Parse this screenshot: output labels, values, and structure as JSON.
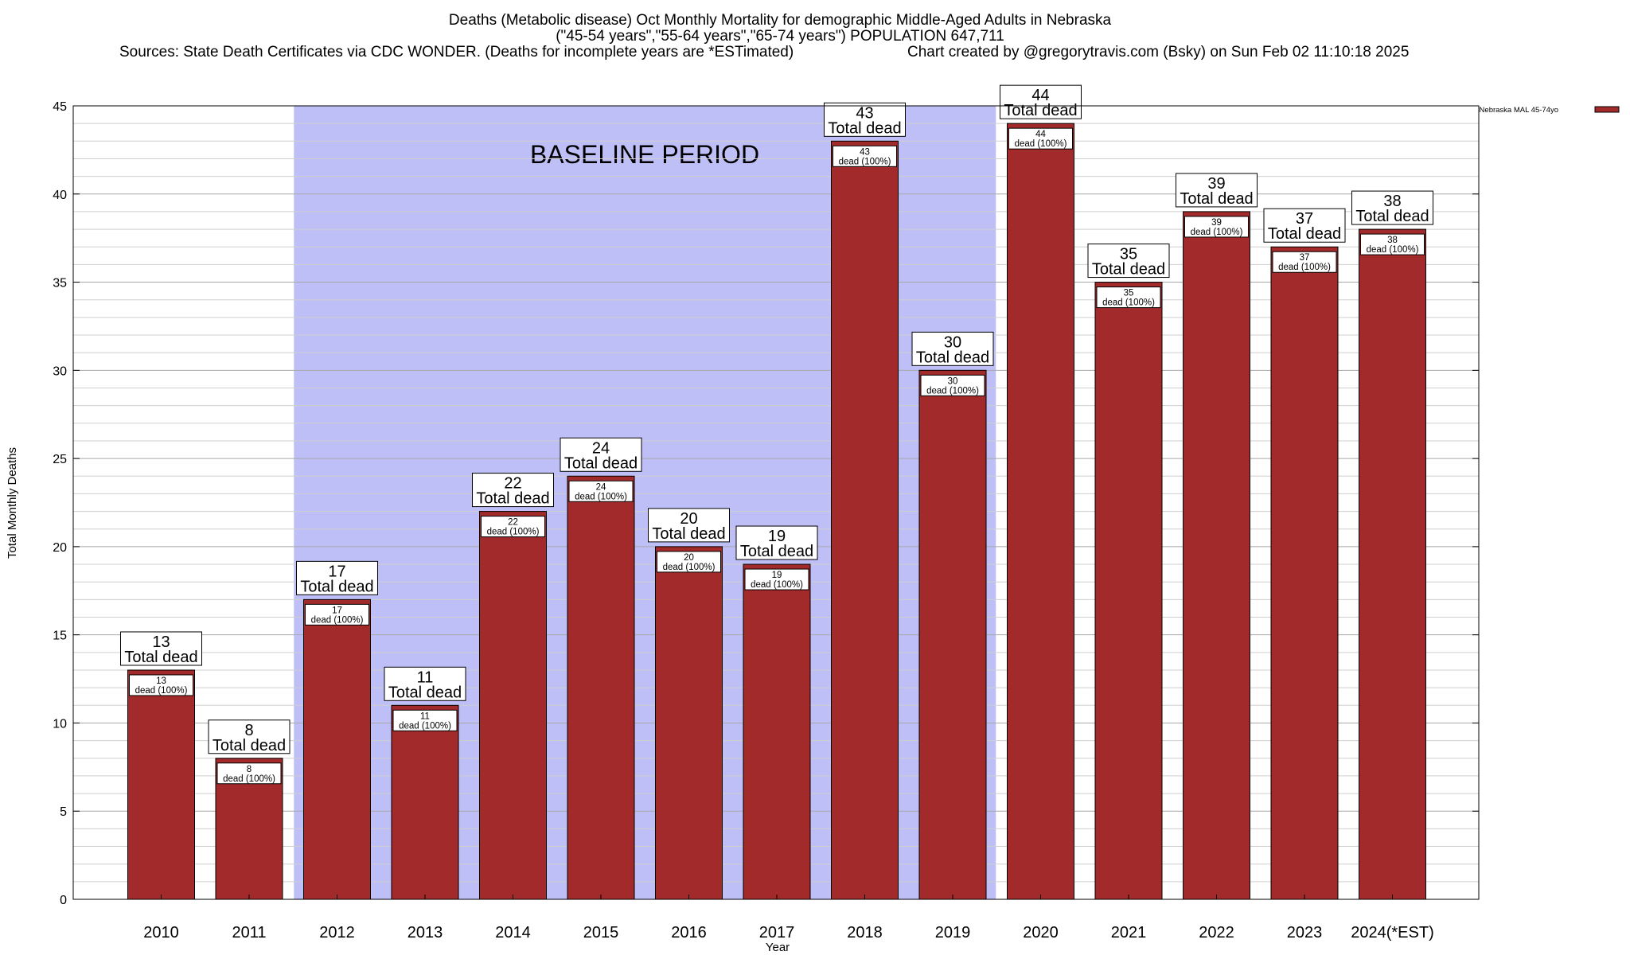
{
  "chart_data": {
    "type": "bar",
    "title_lines": [
      "Deaths (Metabolic disease) Oct Monthly Mortality for demographic Middle-Aged Adults in Nebraska",
      "(\"45-54 years\",\"55-64 years\",\"65-74 years\") POPULATION 647,711",
      "Sources: State Death Certificates via CDC WONDER. (Deaths for incomplete years are *ESTimated)"
    ],
    "credit": "Chart created by @gregorytravis.com (Bsky) on Sun Feb 02 11:10:18 2025",
    "xlabel": "Year",
    "ylabel": "Total Monthly Deaths",
    "ylim": [
      0,
      45
    ],
    "y_ticks": [
      0,
      5,
      10,
      15,
      20,
      25,
      30,
      35,
      40,
      45
    ],
    "grid": true,
    "categories": [
      "2010",
      "2011",
      "2012",
      "2013",
      "2014",
      "2015",
      "2016",
      "2017",
      "2018",
      "2019",
      "2020",
      "2021",
      "2022",
      "2023",
      "2024(*EST)"
    ],
    "series": [
      {
        "name": "Nebraska MAL 45-74yo",
        "color": "#a32a2a",
        "values": [
          13,
          8,
          17,
          11,
          22,
          24,
          20,
          19,
          43,
          30,
          44,
          35,
          39,
          37,
          38
        ]
      }
    ],
    "bar_top_label": "Total dead",
    "bar_inner_label": "dead (100%)",
    "baseline": {
      "label": "BASELINE PERIOD",
      "start": "2012",
      "end": "2019",
      "color": "#bfbff8"
    },
    "legend_position": "top-right"
  }
}
